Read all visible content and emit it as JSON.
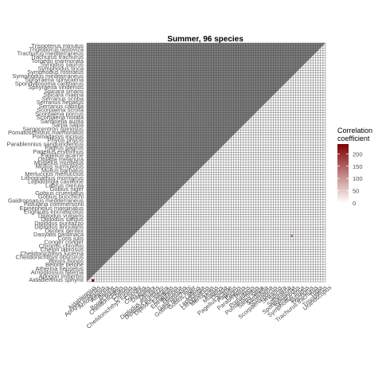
{
  "chart_data": {
    "type": "heatmap",
    "title": "Summer, 96 species",
    "n_species": 96,
    "legend": {
      "title_line1": "Correlation",
      "title_line2": "coefficient",
      "ticks": [
        0,
        50,
        100,
        150,
        200
      ],
      "range": [
        0,
        240
      ],
      "color_low": "#ffffff",
      "color_high": "#7f0000",
      "placement": "right"
    },
    "colors": {
      "na_fill": "#7f7f7f",
      "cell_border": "#3c3c3c",
      "low": "#f7f4f9",
      "mid_highlight": "#a05050",
      "high": "#7f0000"
    },
    "highlighted_cells": [
      {
        "row": 18,
        "col": 82,
        "value": 120
      },
      {
        "row": 0,
        "col": 2,
        "value": 240
      }
    ],
    "y_tick_labels": [
      "Trisopterus minutus",
      "Trigloporus lastoviza",
      "Trachurus mediterraneus",
      "Trachurus trachurus",
      "Torpedo marmorata",
      "Synodus saurus",
      "Symphodus tinca",
      "Symphodus rostratus",
      "Symphodus mediterraneus",
      "Sphyraena sphyraena",
      "Spondyliosoma cantharus",
      "Sphyraena viridensis",
      "Spicara smaris",
      "Spicara maena",
      "Serranus scriba",
      "Serranus hepatus",
      "Serranus cabrilla",
      "Scorpaena scrofa",
      "Scorpaena porcus",
      "Scorpaena notata",
      "Sardinella aurita",
      "Sarpa salpa",
      "Sargocentron spinosus",
      "Pomatoschistus marmoratus",
      "Pomadasys incisus",
      "Phycis phycis",
      "Parablennius sanguinolentus",
      "Pagrus pagrus",
      "Pagellus erythrinus",
      "Pagellus acarne",
      "Oblada melanura",
      "Mustelus mustelus",
      "Mullus surmuletus",
      "Mullus barbatus",
      "Merluccius merluccius",
      "Lithognathus mormyrus",
      "Lepidotrigla cavillone",
      "Labrus merula",
      "Gobius niger",
      "Gobius cruentatus",
      "Gobius bucchichi",
      "Gaidropsarus mediterraneus",
      "Fistularia commersonii",
      "Epinephelus marginatus",
      "Engraulis encrasicolus",
      "Diplodus vulgaris",
      "Diplodus sargus",
      "Diplodus puntazzo",
      "Diplodus annularis",
      "Dentex dentex",
      "Dasyatis pastinaca",
      "Coris julis",
      "Conger conger",
      "Chromis chromis",
      "Chelon labrosus",
      "Chelidonichthys lucerna",
      "Chelidonichthys obscurus",
      "Boops boops",
      "Belone belone",
      "Atherina hepsetus",
      "Arnoglossus laterna",
      "Apogon imberbis",
      "Aidablennius sphynx"
    ],
    "x_tick_labels": [
      "Aidablennius",
      "Apogon imberbis",
      "Arnoglossus",
      "Atherina",
      "Belone",
      "Boops boops",
      "Chelidonichthys",
      "Chelon",
      "Chromis",
      "Chelidonichthys lucerna",
      "Conger",
      "Coris julis",
      "Dasyatis",
      "Dentex",
      "Diplodus annularis",
      "Diplodus puntazzo",
      "Diplodus sargus",
      "Engraulis",
      "Epinephelus",
      "Fistularia",
      "Gaidropsarus",
      "Gobius bucchichi",
      "Gobius niger",
      "Labrus",
      "Lepidotrigla",
      "Lithognathus",
      "Merluccius",
      "Mullus",
      "Mustelus",
      "Oblada",
      "Pagellus acarne",
      "Pagellus",
      "Pagrus",
      "Parablennius",
      "Phycis",
      "Pomadasys",
      "Pomatoschistus",
      "Sarpa salpa",
      "Sardinella",
      "Scorpaena",
      "Scorpaena porcus",
      "Serranus",
      "Spicara",
      "Sphyraena",
      "Spondyliosoma",
      "Symphodus",
      "Symphodus tinca",
      "Synodus",
      "Trachurus",
      "Trachurus trachurus",
      "Trigla",
      "Trisopterus",
      "Uranoscopus"
    ]
  }
}
